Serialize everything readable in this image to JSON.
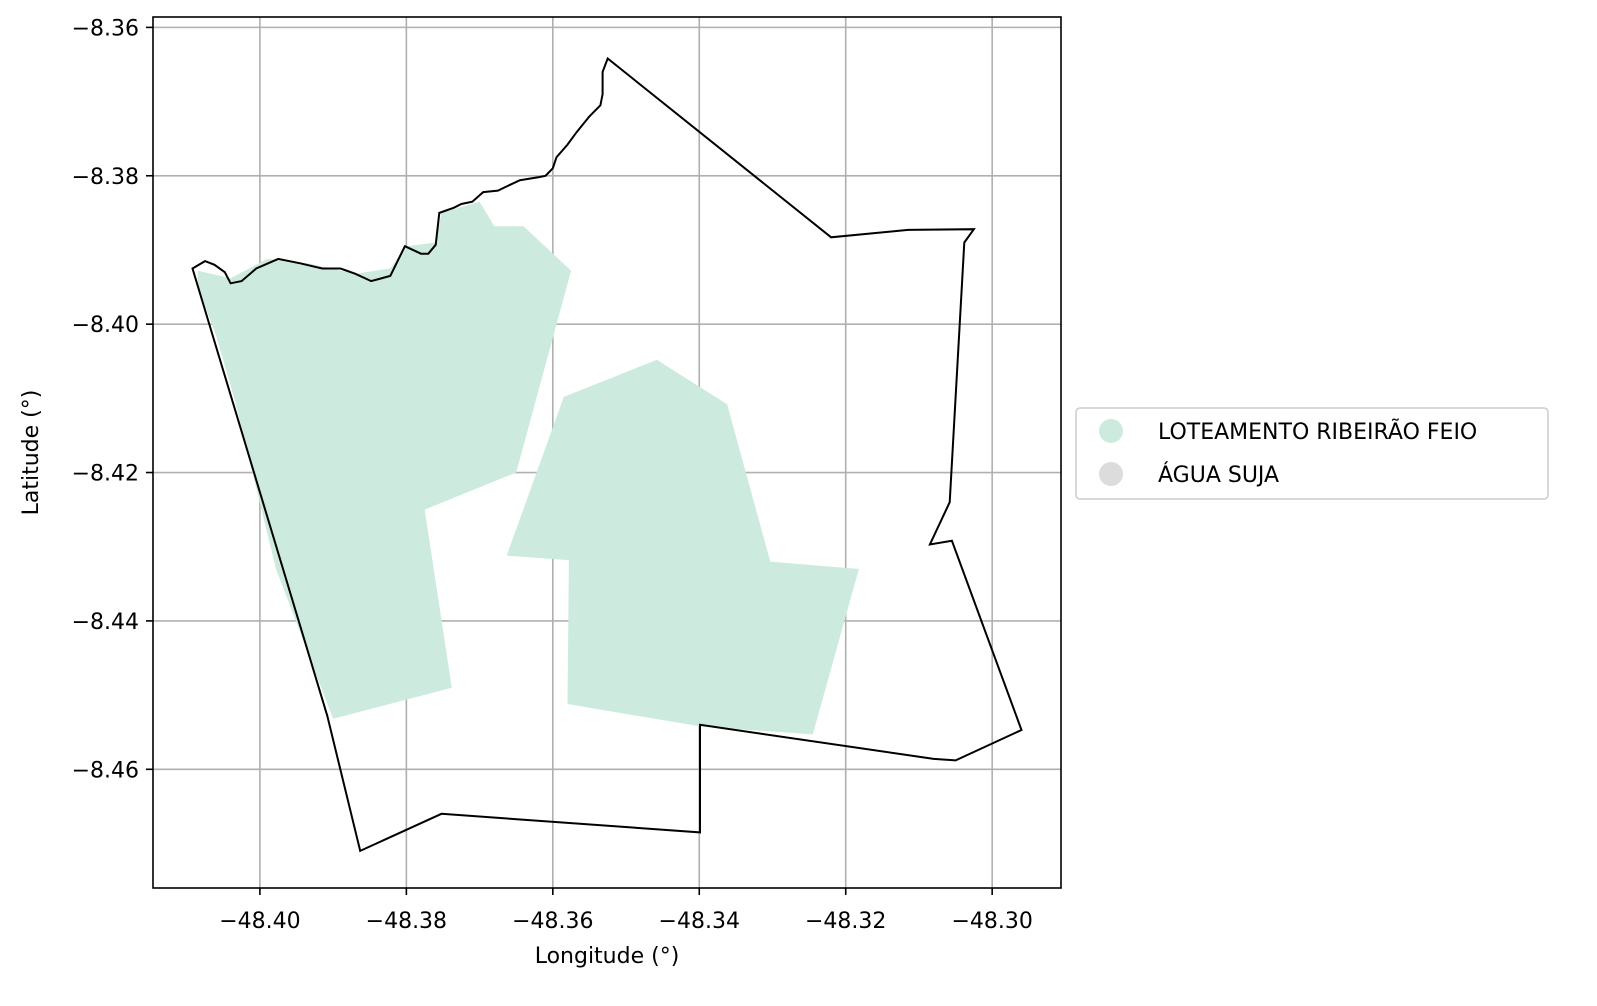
{
  "chart_data": {
    "type": "map",
    "xlabel": "Longitude (°)",
    "ylabel": "Latitude (°)",
    "xlim": [
      -48.4146,
      -48.2906
    ],
    "ylim": [
      -8.476,
      -8.3586
    ],
    "xticks": [
      {
        "value": -48.4,
        "label": "−48.40"
      },
      {
        "value": -48.38,
        "label": "−48.38"
      },
      {
        "value": -48.36,
        "label": "−48.36"
      },
      {
        "value": -48.34,
        "label": "−48.34"
      },
      {
        "value": -48.32,
        "label": "−48.32"
      },
      {
        "value": -48.3,
        "label": "−48.30"
      }
    ],
    "yticks": [
      {
        "value": -8.36,
        "label": "−8.36"
      },
      {
        "value": -8.38,
        "label": "−8.38"
      },
      {
        "value": -8.4,
        "label": "−8.40"
      },
      {
        "value": -8.42,
        "label": "−8.42"
      },
      {
        "value": -8.44,
        "label": "−8.44"
      },
      {
        "value": -8.46,
        "label": "−8.46"
      }
    ],
    "grid": true,
    "legend_position": "right-outside",
    "legend": [
      {
        "label": "LOTEAMENTO RIBEIRÃO FEIO",
        "color": "#cdeade"
      },
      {
        "label": "ÁGUA SUJA",
        "color": "#dcdcdc"
      }
    ],
    "boundary_color": "#000000",
    "fill_color": "#cdeade",
    "boundary": [
      [
        -48.4092,
        -8.3925
      ],
      [
        -48.4075,
        -8.3915
      ],
      [
        -48.4062,
        -8.392
      ],
      [
        -48.4048,
        -8.393
      ],
      [
        -48.404,
        -8.3945
      ],
      [
        -48.4025,
        -8.3942
      ],
      [
        -48.4005,
        -8.3925
      ],
      [
        -48.3975,
        -8.3912
      ],
      [
        -48.3945,
        -8.3918
      ],
      [
        -48.3915,
        -8.3925
      ],
      [
        -48.389,
        -8.3925
      ],
      [
        -48.387,
        -8.3932
      ],
      [
        -48.3848,
        -8.3942
      ],
      [
        -48.3822,
        -8.3935
      ],
      [
        -48.3802,
        -8.3895
      ],
      [
        -48.378,
        -8.3905
      ],
      [
        -48.377,
        -8.3905
      ],
      [
        -48.376,
        -8.3893
      ],
      [
        -48.3755,
        -8.385
      ],
      [
        -48.3735,
        -8.3843
      ],
      [
        -48.3725,
        -8.3838
      ],
      [
        -48.371,
        -8.3835
      ],
      [
        -48.3695,
        -8.3822
      ],
      [
        -48.3675,
        -8.382
      ],
      [
        -48.3658,
        -8.3812
      ],
      [
        -48.3645,
        -8.3806
      ],
      [
        -48.362,
        -8.3802
      ],
      [
        -48.361,
        -8.38
      ],
      [
        -48.36,
        -8.379
      ],
      [
        -48.3595,
        -8.3775
      ],
      [
        -48.358,
        -8.3758
      ],
      [
        -48.3568,
        -8.3742
      ],
      [
        -48.355,
        -8.372
      ],
      [
        -48.3535,
        -8.3705
      ],
      [
        -48.3532,
        -8.369
      ],
      [
        -48.3532,
        -8.366
      ],
      [
        -48.3525,
        -8.3642
      ],
      [
        -48.322,
        -8.3883
      ],
      [
        -48.3115,
        -8.3873
      ],
      [
        -48.3025,
        -8.3872
      ],
      [
        -48.3038,
        -8.389
      ],
      [
        -48.3058,
        -8.424
      ],
      [
        -48.3085,
        -8.4297
      ],
      [
        -48.3055,
        -8.4292
      ],
      [
        -48.296,
        -8.4547
      ],
      [
        -48.305,
        -8.4588
      ],
      [
        -48.308,
        -8.4586
      ],
      [
        -48.3399,
        -8.454
      ],
      [
        -48.3399,
        -8.4685
      ],
      [
        -48.3752,
        -8.466
      ],
      [
        -48.3863,
        -8.471
      ],
      [
        -48.3908,
        -8.4528
      ],
      [
        -48.4092,
        -8.3925
      ]
    ],
    "regions": [
      {
        "layer": "LOTEAMENTO RIBEIRÃO FEIO",
        "coords": [
          [
            -48.4085,
            -8.3928
          ],
          [
            -48.404,
            -8.3938
          ],
          [
            -48.399,
            -8.3912
          ],
          [
            -48.3935,
            -8.3918
          ],
          [
            -48.387,
            -8.3932
          ],
          [
            -48.3822,
            -8.3925
          ],
          [
            -48.38,
            -8.3895
          ],
          [
            -48.376,
            -8.389
          ],
          [
            -48.3752,
            -8.385
          ],
          [
            -48.37,
            -8.3835
          ],
          [
            -48.368,
            -8.3868
          ],
          [
            -48.364,
            -8.3868
          ],
          [
            -48.3575,
            -8.3928
          ],
          [
            -48.365,
            -8.42
          ],
          [
            -48.3775,
            -8.425
          ],
          [
            -48.3738,
            -8.449
          ],
          [
            -48.39,
            -8.4532
          ],
          [
            -48.3978,
            -8.433
          ],
          [
            -48.4035,
            -8.41
          ],
          [
            -48.406,
            -8.4015
          ],
          [
            -48.4085,
            -8.395
          ]
        ]
      },
      {
        "layer": "LOTEAMENTO RIBEIRÃO FEIO",
        "coords": [
          [
            -48.3585,
            -8.4098
          ],
          [
            -48.3458,
            -8.4048
          ],
          [
            -48.3362,
            -8.4108
          ],
          [
            -48.3303,
            -8.432
          ],
          [
            -48.3182,
            -8.433
          ],
          [
            -48.3245,
            -8.4553
          ],
          [
            -48.34,
            -8.4542
          ],
          [
            -48.358,
            -8.4512
          ],
          [
            -48.3578,
            -8.4318
          ],
          [
            -48.3663,
            -8.4312
          ]
        ]
      }
    ]
  }
}
